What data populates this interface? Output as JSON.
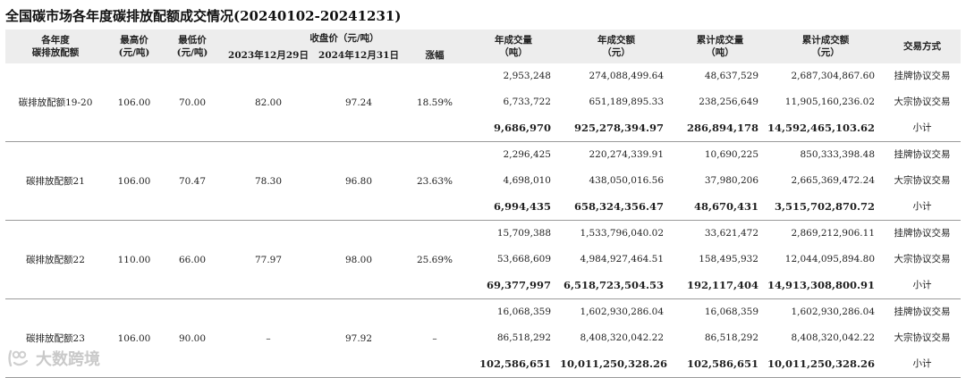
{
  "title": "全国碳市场各年度碳排放配额成交情况(20240102-20241231)",
  "header": {
    "vintage": [
      "各年度",
      "碳排放配额"
    ],
    "max_price": [
      "最高价",
      "(元/吨)"
    ],
    "min_price": [
      "最低价",
      "(元/吨)"
    ],
    "close_group": "收盘价（元/吨）",
    "close_2023": "2023年12月29日",
    "close_2024": "2024年12月31日",
    "change": "涨幅",
    "annual_volume": [
      "年成交量",
      "（吨）"
    ],
    "annual_amount": [
      "年成交额",
      "（元）"
    ],
    "cum_volume": [
      "累计成交量",
      "（吨）"
    ],
    "cum_amount": [
      "累计成交额",
      "（元）"
    ],
    "mode": "交易方式"
  },
  "rows": [
    {
      "name": "碳排放配额19-20",
      "max": "106.00",
      "min": "70.00",
      "close_2023": "82.00",
      "close_2024": "97.24",
      "change": "18.59%",
      "lines": [
        {
          "annual_volume": "2,953,248",
          "annual_amount": "274,088,499.64",
          "cum_volume": "48,637,529",
          "cum_amount": "2,687,304,867.60",
          "mode": "挂牌协议交易"
        },
        {
          "annual_volume": "6,733,722",
          "annual_amount": "651,189,895.33",
          "cum_volume": "238,256,649",
          "cum_amount": "11,905,160,236.02",
          "mode": "大宗协议交易"
        },
        {
          "annual_volume": "9,686,970",
          "annual_amount": "925,278,394.97",
          "cum_volume": "286,894,178",
          "cum_amount": "14,592,465,103.62",
          "mode": "小计"
        }
      ]
    },
    {
      "name": "碳排放配额21",
      "max": "106.00",
      "min": "70.47",
      "close_2023": "78.30",
      "close_2024": "96.80",
      "change": "23.63%",
      "lines": [
        {
          "annual_volume": "2,296,425",
          "annual_amount": "220,274,339.91",
          "cum_volume": "10,690,225",
          "cum_amount": "850,333,398.48",
          "mode": "挂牌协议交易"
        },
        {
          "annual_volume": "4,698,010",
          "annual_amount": "438,050,016.56",
          "cum_volume": "37,980,206",
          "cum_amount": "2,665,369,472.24",
          "mode": "大宗协议交易"
        },
        {
          "annual_volume": "6,994,435",
          "annual_amount": "658,324,356.47",
          "cum_volume": "48,670,431",
          "cum_amount": "3,515,702,870.72",
          "mode": "小计"
        }
      ]
    },
    {
      "name": "碳排放配额22",
      "max": "110.00",
      "min": "66.00",
      "close_2023": "77.97",
      "close_2024": "98.00",
      "change": "25.69%",
      "lines": [
        {
          "annual_volume": "15,709,388",
          "annual_amount": "1,533,796,040.02",
          "cum_volume": "33,621,472",
          "cum_amount": "2,869,212,906.11",
          "mode": "挂牌协议交易"
        },
        {
          "annual_volume": "53,668,609",
          "annual_amount": "4,984,927,464.51",
          "cum_volume": "158,495,932",
          "cum_amount": "12,044,095,894.80",
          "mode": "大宗协议交易"
        },
        {
          "annual_volume": "69,377,997",
          "annual_amount": "6,518,723,504.53",
          "cum_volume": "192,117,404",
          "cum_amount": "14,913,308,800.91",
          "mode": "小计"
        }
      ]
    },
    {
      "name": "碳排放配额23",
      "max": "106.00",
      "min": "90.00",
      "close_2023": "–",
      "close_2024": "97.92",
      "change": "–",
      "lines": [
        {
          "annual_volume": "16,068,359",
          "annual_amount": "1,602,930,286.04",
          "cum_volume": "16,068,359",
          "cum_amount": "1,602,930,286.04",
          "mode": "挂牌协议交易"
        },
        {
          "annual_volume": "86,518,292",
          "annual_amount": "8,408,320,042.22",
          "cum_volume": "86,518,292",
          "cum_amount": "8,408,320,042.22",
          "mode": "大宗协议交易"
        },
        {
          "annual_volume": "102,586,651",
          "annual_amount": "10,011,250,328.26",
          "cum_volume": "102,586,651",
          "cum_amount": "10,011,250,328.26",
          "mode": "小计"
        }
      ]
    }
  ],
  "watermark": "大数跨境"
}
